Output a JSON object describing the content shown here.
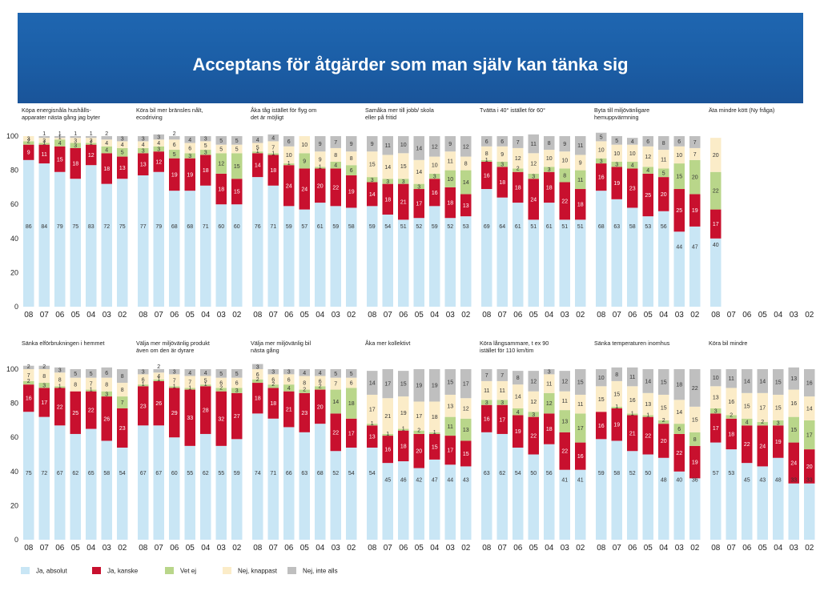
{
  "title": "Acceptans för åtgärder som man själv kan tänka sig",
  "colors": {
    "ja_absolut": "#c9e6f5",
    "ja_kanske": "#c8102e",
    "vet_ej": "#b9d68a",
    "nej_knappast": "#fbecc8",
    "nej_inte_alls": "#bfbfbf",
    "header": "#1d61ab"
  },
  "legend": [
    {
      "label": "Ja, absolut",
      "color": "#c9e6f5"
    },
    {
      "label": "Ja, kanske",
      "color": "#c8102e"
    },
    {
      "label": "Vet ej",
      "color": "#b9d68a"
    },
    {
      "label": "Nej, knappast",
      "color": "#fbecc8"
    },
    {
      "label": "Nej, inte alls",
      "color": "#bfbfbf"
    }
  ],
  "chart_data": [
    {
      "type": "bar",
      "stacked": true,
      "title": "Köpa energisnåla hushålls- apparater nästa gång jag byter",
      "categories": [
        "08",
        "07",
        "06",
        "05",
        "04",
        "03",
        "02"
      ],
      "ylim": [
        0,
        100
      ],
      "yticks": [
        0,
        20,
        40,
        60,
        80,
        100
      ],
      "series": [
        {
          "name": "Ja, absolut",
          "values": [
            86,
            84,
            79,
            75,
            83,
            72,
            75
          ]
        },
        {
          "name": "Ja, kanske",
          "values": [
            9,
            11,
            15,
            18,
            12,
            18,
            13
          ]
        },
        {
          "name": "Vet ej",
          "values": [
            2,
            1,
            4,
            3,
            1,
            4,
            5
          ]
        },
        {
          "name": "Nej, knappast",
          "values": [
            3,
            3,
            1,
            3,
            3,
            4,
            4
          ]
        },
        {
          "name": "Nej, inte alls",
          "values": [
            0,
            1,
            1,
            1,
            1,
            2,
            3
          ]
        }
      ]
    },
    {
      "type": "bar",
      "stacked": true,
      "title": "Köra bil mer bränsles nålt, ecodriving",
      "categories": [
        "08",
        "07",
        "06",
        "05",
        "04",
        "03",
        "02"
      ],
      "series": [
        {
          "name": "Ja, absolut",
          "values": [
            77,
            79,
            68,
            68,
            71,
            60,
            60
          ]
        },
        {
          "name": "Ja, kanske",
          "values": [
            13,
            12,
            19,
            19,
            18,
            18,
            15
          ]
        },
        {
          "name": "Vet ej",
          "values": [
            3,
            3,
            5,
            3,
            3,
            12,
            15
          ]
        },
        {
          "name": "Nej, knappast",
          "values": [
            4,
            4,
            6,
            6,
            5,
            5,
            5
          ]
        },
        {
          "name": "Nej, inte alls",
          "values": [
            3,
            3,
            2,
            4,
            3,
            5,
            5
          ]
        }
      ]
    },
    {
      "type": "bar",
      "stacked": true,
      "title": "Åka tåg istället för flyg om det är möjligt",
      "categories": [
        "08",
        "07",
        "06",
        "05",
        "04",
        "03",
        "02"
      ],
      "series": [
        {
          "name": "Ja, absolut",
          "values": [
            76,
            71,
            59,
            57,
            61,
            59,
            58
          ]
        },
        {
          "name": "Ja, kanske",
          "values": [
            14,
            18,
            24,
            24,
            20,
            22,
            19
          ]
        },
        {
          "name": "Vet ej",
          "values": [
            1,
            1,
            1,
            9,
            1,
            4,
            6
          ]
        },
        {
          "name": "Nej, knappast",
          "values": [
            5,
            7,
            10,
            10,
            9,
            8,
            8
          ]
        },
        {
          "name": "Nej, inte alls",
          "values": [
            4,
            4,
            6,
            0,
            9,
            7,
            9
          ]
        }
      ]
    },
    {
      "type": "bar",
      "stacked": true,
      "title": "Samåka mer till jobb/ skola eller på fritid",
      "categories": [
        "08",
        "07",
        "06",
        "05",
        "04",
        "03",
        "02"
      ],
      "series": [
        {
          "name": "Ja, absolut",
          "values": [
            59,
            54,
            51,
            52,
            59,
            52,
            53
          ]
        },
        {
          "name": "Ja, kanske",
          "values": [
            14,
            18,
            21,
            17,
            16,
            18,
            13
          ]
        },
        {
          "name": "Vet ej",
          "values": [
            3,
            3,
            3,
            3,
            3,
            10,
            14
          ]
        },
        {
          "name": "Nej, knappast",
          "values": [
            15,
            14,
            15,
            14,
            10,
            11,
            8
          ]
        },
        {
          "name": "Nej, inte alls",
          "values": [
            9,
            11,
            10,
            14,
            12,
            9,
            12
          ]
        }
      ]
    },
    {
      "type": "bar",
      "stacked": true,
      "title": "Tvätta i 40° istället för 60°",
      "categories": [
        "08",
        "07",
        "06",
        "05",
        "04",
        "03",
        "02"
      ],
      "series": [
        {
          "name": "Ja, absolut",
          "values": [
            69,
            64,
            61,
            51,
            61,
            51,
            51
          ]
        },
        {
          "name": "Ja, kanske",
          "values": [
            16,
            18,
            18,
            24,
            18,
            22,
            18
          ]
        },
        {
          "name": "Vet ej",
          "values": [
            1,
            3,
            2,
            3,
            3,
            8,
            11
          ]
        },
        {
          "name": "Nej, knappast",
          "values": [
            8,
            9,
            12,
            12,
            10,
            10,
            9
          ]
        },
        {
          "name": "Nej, inte alls",
          "values": [
            6,
            6,
            7,
            11,
            8,
            9,
            11
          ]
        }
      ]
    },
    {
      "type": "bar",
      "stacked": true,
      "title": "Byta till miljövänligare hemuppvärmning",
      "categories": [
        "08",
        "07",
        "06",
        "05",
        "04",
        "03",
        "02"
      ],
      "series": [
        {
          "name": "Ja, absolut",
          "values": [
            68,
            63,
            58,
            53,
            56,
            44,
            47
          ]
        },
        {
          "name": "Ja, kanske",
          "values": [
            16,
            19,
            23,
            25,
            20,
            25,
            19
          ]
        },
        {
          "name": "Vet ej",
          "values": [
            3,
            3,
            4,
            4,
            5,
            15,
            20
          ]
        },
        {
          "name": "Nej, knappast",
          "values": [
            10,
            10,
            10,
            12,
            11,
            10,
            7
          ]
        },
        {
          "name": "Nej, inte alls",
          "values": [
            5,
            5,
            4,
            6,
            8,
            6,
            7
          ]
        }
      ]
    },
    {
      "type": "bar",
      "stacked": true,
      "title": "Äta mindre kött (Ny fråga)",
      "categories": [
        "08",
        "07",
        "06",
        "05",
        "04",
        "03",
        "02"
      ],
      "series": [
        {
          "name": "Ja, absolut",
          "values": [
            40,
            null,
            null,
            null,
            null,
            null,
            null
          ]
        },
        {
          "name": "Ja, kanske",
          "values": [
            17,
            null,
            null,
            null,
            null,
            null,
            null
          ]
        },
        {
          "name": "Vet ej",
          "values": [
            22,
            null,
            null,
            null,
            null,
            null,
            null
          ]
        },
        {
          "name": "Nej, knappast",
          "values": [
            20,
            null,
            null,
            null,
            null,
            null,
            null
          ]
        },
        {
          "name": "Nej, inte alls",
          "values": [
            0,
            null,
            null,
            null,
            null,
            null,
            null
          ]
        }
      ]
    },
    {
      "type": "bar",
      "stacked": true,
      "title": "Sänka elförbrukningen i hemmet",
      "categories": [
        "08",
        "07",
        "06",
        "05",
        "04",
        "03",
        "02"
      ],
      "series": [
        {
          "name": "Ja, absolut",
          "values": [
            75,
            72,
            67,
            62,
            65,
            58,
            54
          ]
        },
        {
          "name": "Ja, kanske",
          "values": [
            16,
            17,
            22,
            25,
            22,
            26,
            23
          ]
        },
        {
          "name": "Vet ej",
          "values": [
            2,
            3,
            1,
            0,
            1,
            3,
            7
          ]
        },
        {
          "name": "Nej, knappast",
          "values": [
            7,
            8,
            8,
            8,
            7,
            8,
            8
          ]
        },
        {
          "name": "Nej, inte alls",
          "values": [
            2,
            2,
            3,
            5,
            5,
            6,
            8
          ]
        }
      ]
    },
    {
      "type": "bar",
      "stacked": true,
      "title": "Välja mer miljövänlig produkt även om den är dyrare",
      "categories": [
        "08",
        "07",
        "06",
        "05",
        "04",
        "03",
        "02"
      ],
      "series": [
        {
          "name": "Ja, absolut",
          "values": [
            67,
            67,
            60,
            55,
            62,
            55,
            59
          ]
        },
        {
          "name": "Ja, kanske",
          "values": [
            23,
            26,
            29,
            33,
            28,
            32,
            27
          ]
        },
        {
          "name": "Vet ej",
          "values": [
            1,
            1,
            1,
            1,
            1,
            2,
            3
          ]
        },
        {
          "name": "Nej, knappast",
          "values": [
            6,
            4,
            7,
            7,
            5,
            6,
            6
          ]
        },
        {
          "name": "Nej, inte alls",
          "values": [
            3,
            2,
            3,
            4,
            4,
            5,
            5
          ]
        }
      ]
    },
    {
      "type": "bar",
      "stacked": true,
      "title": "Välja mer miljövänlig bil nästa gång",
      "categories": [
        "08",
        "07",
        "06",
        "05",
        "04",
        "03",
        "02"
      ],
      "series": [
        {
          "name": "Ja, absolut",
          "values": [
            74,
            71,
            66,
            63,
            68,
            52,
            54
          ]
        },
        {
          "name": "Ja, kanske",
          "values": [
            18,
            18,
            21,
            23,
            20,
            22,
            17
          ]
        },
        {
          "name": "Vet ej",
          "values": [
            2,
            2,
            4,
            2,
            2,
            14,
            18
          ]
        },
        {
          "name": "Nej, knappast",
          "values": [
            6,
            6,
            6,
            8,
            6,
            7,
            6
          ]
        },
        {
          "name": "Nej, inte alls",
          "values": [
            3,
            3,
            3,
            4,
            4,
            5,
            5
          ]
        }
      ]
    },
    {
      "type": "bar",
      "stacked": true,
      "title": "Åka mer kollektivt",
      "categories": [
        "08",
        "07",
        "06",
        "05",
        "04",
        "03",
        "02"
      ],
      "series": [
        {
          "name": "Ja, absolut",
          "values": [
            54,
            45,
            46,
            42,
            47,
            44,
            43
          ]
        },
        {
          "name": "Ja, kanske",
          "values": [
            13,
            16,
            18,
            20,
            15,
            17,
            15
          ]
        },
        {
          "name": "Vet ej",
          "values": [
            1,
            1,
            1,
            2,
            1,
            11,
            13
          ]
        },
        {
          "name": "Nej, knappast",
          "values": [
            17,
            21,
            19,
            17,
            18,
            13,
            12
          ]
        },
        {
          "name": "Nej, inte alls",
          "values": [
            14,
            17,
            15,
            19,
            19,
            15,
            17
          ]
        }
      ]
    },
    {
      "type": "bar",
      "stacked": true,
      "title": "Köra långsammare, t ex 90 istället för 110 km/tim",
      "categories": [
        "08",
        "07",
        "06",
        "05",
        "04",
        "03",
        "02"
      ],
      "series": [
        {
          "name": "Ja, absolut",
          "values": [
            63,
            62,
            54,
            50,
            56,
            41,
            41
          ]
        },
        {
          "name": "Ja, kanske",
          "values": [
            16,
            17,
            19,
            22,
            18,
            22,
            16
          ]
        },
        {
          "name": "Vet ej",
          "values": [
            3,
            3,
            4,
            3,
            12,
            13,
            17
          ]
        },
        {
          "name": "Nej, knappast",
          "values": [
            11,
            11,
            14,
            12,
            11,
            11,
            11
          ]
        },
        {
          "name": "Nej, inte alls",
          "values": [
            7,
            7,
            8,
            12,
            3,
            12,
            15
          ]
        }
      ]
    },
    {
      "type": "bar",
      "stacked": true,
      "title": "Sänka temperaturen inomhus",
      "categories": [
        "08",
        "07",
        "06",
        "05",
        "04",
        "03",
        "02"
      ],
      "series": [
        {
          "name": "Ja, absolut",
          "values": [
            59,
            58,
            52,
            50,
            48,
            40,
            36
          ]
        },
        {
          "name": "Ja, kanske",
          "values": [
            16,
            19,
            21,
            22,
            20,
            22,
            19
          ]
        },
        {
          "name": "Vet ej",
          "values": [
            0,
            1,
            1,
            1,
            2,
            6,
            8
          ]
        },
        {
          "name": "Nej, knappast",
          "values": [
            15,
            15,
            16,
            13,
            15,
            14,
            15
          ]
        },
        {
          "name": "Nej, inte alls",
          "values": [
            10,
            8,
            11,
            14,
            15,
            18,
            22
          ]
        }
      ]
    },
    {
      "type": "bar",
      "stacked": true,
      "title": "Köra bil mindre",
      "categories": [
        "08",
        "07",
        "06",
        "05",
        "04",
        "03",
        "02"
      ],
      "series": [
        {
          "name": "Ja, absolut",
          "values": [
            57,
            53,
            45,
            43,
            48,
            33,
            33
          ]
        },
        {
          "name": "Ja, kanske",
          "values": [
            17,
            18,
            22,
            24,
            19,
            24,
            20
          ]
        },
        {
          "name": "Vet ej",
          "values": [
            3,
            2,
            4,
            2,
            3,
            15,
            17
          ]
        },
        {
          "name": "Nej, knappast",
          "values": [
            13,
            16,
            15,
            17,
            15,
            16,
            14
          ]
        },
        {
          "name": "Nej, inte alls",
          "values": [
            10,
            11,
            14,
            14,
            15,
            13,
            16
          ]
        }
      ]
    }
  ]
}
